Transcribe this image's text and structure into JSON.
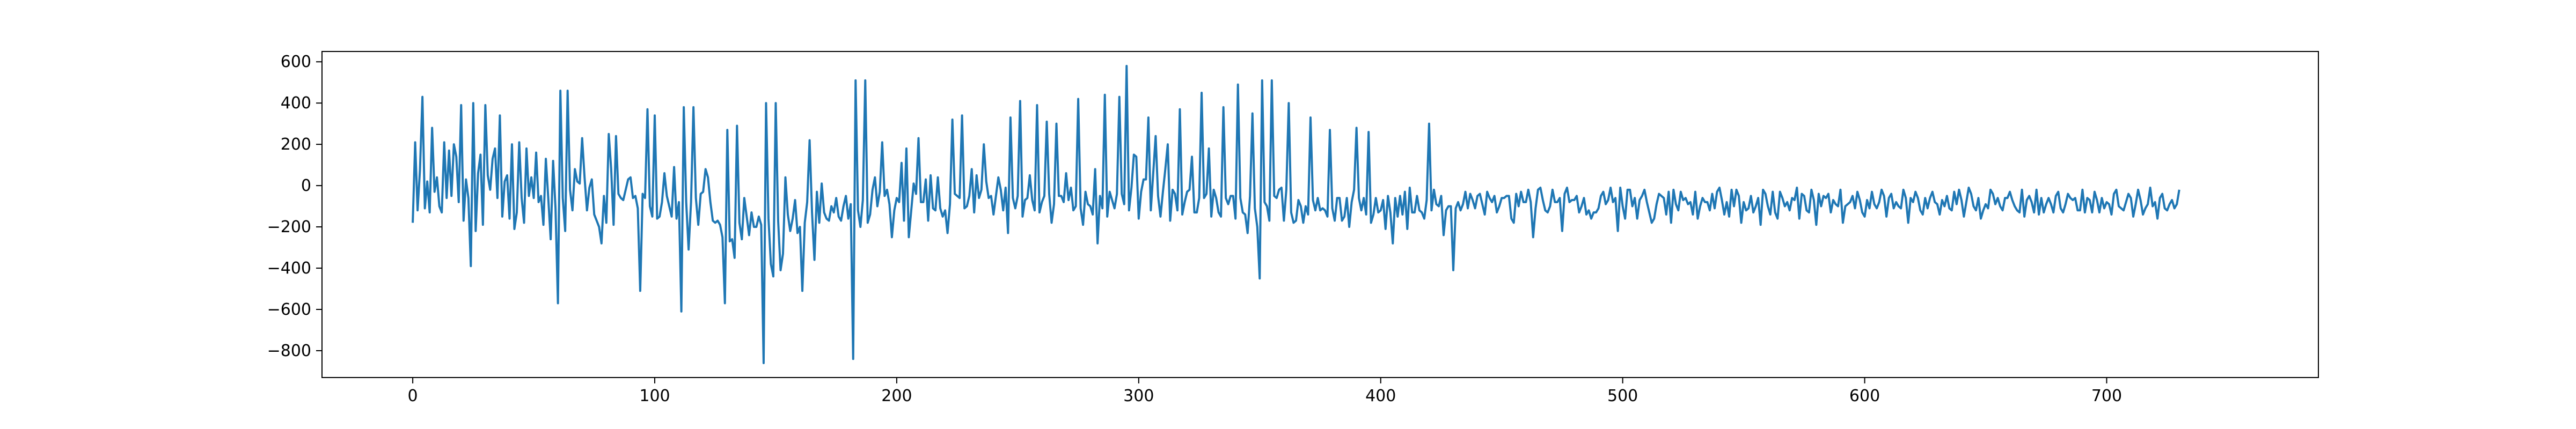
{
  "chart_data": {
    "type": "line",
    "title": "",
    "xlabel": "",
    "ylabel": "",
    "xlim": [
      -37.5,
      787.5
    ],
    "ylim": [
      -930,
      650
    ],
    "xticks": [
      0,
      100,
      200,
      300,
      400,
      500,
      600,
      700
    ],
    "yticks": [
      -800,
      -600,
      -400,
      -200,
      0,
      200,
      400,
      600
    ],
    "grid": false,
    "legend": "none",
    "series": [
      {
        "color": "#1f77b4",
        "x_start": 0,
        "x_step": 1,
        "values": [
          -180,
          210,
          -120,
          80,
          430,
          -110,
          20,
          -130,
          280,
          -30,
          40,
          -100,
          -130,
          210,
          -60,
          170,
          -50,
          200,
          140,
          -80,
          390,
          -170,
          30,
          -60,
          -390,
          400,
          -220,
          60,
          150,
          -190,
          390,
          50,
          -20,
          130,
          180,
          -60,
          340,
          -150,
          20,
          50,
          -160,
          200,
          -210,
          -130,
          210,
          -60,
          -180,
          180,
          -50,
          40,
          -60,
          160,
          -80,
          -50,
          -190,
          130,
          -60,
          -260,
          120,
          -110,
          -570,
          460,
          -60,
          -220,
          460,
          -20,
          -120,
          80,
          20,
          10,
          230,
          40,
          -120,
          -10,
          30,
          -140,
          -170,
          -200,
          -280,
          -50,
          -180,
          250,
          80,
          -190,
          240,
          -40,
          -60,
          -70,
          -20,
          30,
          40,
          -60,
          -50,
          -110,
          -510,
          -40,
          -60,
          370,
          -100,
          -150,
          340,
          -160,
          -150,
          -80,
          60,
          -50,
          -100,
          -150,
          90,
          -160,
          -80,
          -610,
          380,
          -80,
          -310,
          -80,
          380,
          -60,
          -190,
          -40,
          -30,
          80,
          40,
          -80,
          -170,
          -180,
          -170,
          -190,
          -250,
          -570,
          270,
          -270,
          -260,
          -350,
          290,
          -180,
          -260,
          -60,
          -150,
          -240,
          -130,
          -200,
          -200,
          -150,
          -190,
          -860,
          400,
          -160,
          -380,
          -440,
          400,
          -170,
          -410,
          -330,
          40,
          -140,
          -220,
          -160,
          -70,
          -230,
          -200,
          -510,
          -180,
          -80,
          220,
          -130,
          -360,
          -30,
          -180,
          10,
          -130,
          -160,
          -170,
          -100,
          -130,
          -60,
          -150,
          -170,
          -100,
          -50,
          -160,
          -90,
          -840,
          510,
          -120,
          -200,
          -70,
          510,
          -180,
          -140,
          -20,
          40,
          -100,
          -30,
          210,
          -50,
          -20,
          -90,
          -250,
          -120,
          -60,
          -80,
          110,
          -170,
          180,
          -250,
          -120,
          10,
          -40,
          230,
          -80,
          -80,
          30,
          -170,
          50,
          -110,
          -120,
          40,
          -110,
          -150,
          -120,
          -230,
          -90,
          320,
          -40,
          -50,
          -60,
          340,
          -110,
          -100,
          -50,
          80,
          -130,
          50,
          -60,
          -20,
          200,
          20,
          -60,
          -50,
          -140,
          -50,
          40,
          -20,
          -120,
          -10,
          -230,
          330,
          -60,
          -110,
          -50,
          410,
          -150,
          -70,
          -60,
          50,
          -70,
          -120,
          390,
          -130,
          -80,
          -50,
          310,
          -40,
          -180,
          -90,
          300,
          -50,
          -50,
          -80,
          60,
          -70,
          -10,
          -120,
          -100,
          420,
          -110,
          -190,
          -30,
          -90,
          -100,
          -140,
          80,
          -280,
          -50,
          -110,
          440,
          -150,
          -30,
          -70,
          -110,
          -40,
          430,
          -40,
          -90,
          580,
          -120,
          -10,
          150,
          140,
          -160,
          -30,
          30,
          30,
          330,
          -120,
          60,
          240,
          -50,
          -150,
          -30,
          80,
          200,
          -170,
          -20,
          -40,
          -120,
          370,
          -140,
          -80,
          -30,
          -20,
          140,
          -130,
          -130,
          -60,
          450,
          -60,
          -40,
          180,
          -150,
          -20,
          -60,
          -130,
          -150,
          380,
          -60,
          -90,
          -50,
          -50,
          -160,
          490,
          -60,
          -130,
          -140,
          -230,
          -50,
          350,
          -110,
          -200,
          -450,
          510,
          -80,
          -100,
          -170,
          510,
          -50,
          -60,
          -20,
          -10,
          -170,
          -20,
          400,
          -130,
          -180,
          -170,
          -70,
          -100,
          -180,
          -100,
          -140,
          330,
          -70,
          -120,
          -60,
          -120,
          -110,
          -120,
          -150,
          270,
          -110,
          -170,
          -60,
          -60,
          -170,
          -150,
          -60,
          -200,
          -80,
          -20,
          280,
          -60,
          -120,
          -60,
          -140,
          260,
          -180,
          -140,
          -60,
          -130,
          -120,
          -70,
          -210,
          -50,
          -130,
          -280,
          -60,
          -150,
          -50,
          -140,
          -30,
          -210,
          -10,
          -130,
          -130,
          -50,
          -120,
          -130,
          -160,
          -70,
          300,
          -120,
          -20,
          -90,
          -100,
          -50,
          -240,
          -120,
          -100,
          -100,
          -410,
          -110,
          -80,
          -120,
          -90,
          -30,
          -110,
          -40,
          -70,
          -110,
          -50,
          -40,
          -90,
          -140,
          -30,
          -60,
          -80,
          -50,
          -130,
          -100,
          -60,
          -60,
          -50,
          -50,
          -160,
          -180,
          -40,
          -100,
          -30,
          -80,
          -80,
          -20,
          -80,
          -250,
          -110,
          -20,
          -10,
          -70,
          -120,
          -130,
          -100,
          -20,
          -80,
          -80,
          -60,
          -220,
          -40,
          -10,
          -80,
          -70,
          -70,
          -50,
          -130,
          -100,
          -60,
          -140,
          -120,
          -160,
          -130,
          -130,
          -110,
          -50,
          -30,
          -90,
          -70,
          -10,
          -80,
          -60,
          -220,
          -10,
          -100,
          -160,
          -20,
          -20,
          -100,
          -60,
          -160,
          -70,
          -50,
          -20,
          -80,
          -130,
          -180,
          -160,
          -90,
          -40,
          -50,
          -60,
          -140,
          -30,
          -180,
          -20,
          -90,
          -120,
          -30,
          -70,
          -60,
          -90,
          -80,
          -140,
          -30,
          -160,
          -100,
          -60,
          -80,
          -80,
          -120,
          -40,
          -110,
          -30,
          -10,
          -70,
          -140,
          -80,
          -150,
          -20,
          -100,
          -20,
          -50,
          -180,
          -80,
          -120,
          -110,
          -50,
          -130,
          -100,
          -60,
          -190,
          -20,
          -40,
          -100,
          -140,
          -30,
          -130,
          -160,
          -30,
          -60,
          -100,
          -80,
          -120,
          -60,
          -70,
          -10,
          -160,
          -40,
          -50,
          -120,
          -130,
          -20,
          -70,
          -190,
          -40,
          -100,
          -50,
          -60,
          -40,
          -130,
          -70,
          -90,
          -100,
          -20,
          -180,
          -100,
          -90,
          -80,
          -50,
          -110,
          -30,
          -70,
          -130,
          -150,
          -70,
          -110,
          -30,
          -90,
          -110,
          -80,
          -20,
          -50,
          -150,
          -60,
          -40,
          -110,
          -80,
          -100,
          -110,
          -20,
          -60,
          -180,
          -60,
          -80,
          -30,
          -60,
          -120,
          -140,
          -60,
          -110,
          -60,
          -30,
          -80,
          -90,
          -140,
          -70,
          -100,
          -50,
          -110,
          -120,
          -30,
          -90,
          -20,
          -70,
          -150,
          -80,
          -10,
          -40,
          -100,
          -120,
          -60,
          -160,
          -120,
          -90,
          -110,
          -20,
          -40,
          -90,
          -60,
          -100,
          -120,
          -60,
          -60,
          -30,
          -70,
          -100,
          -120,
          -130,
          -20,
          -150,
          -70,
          -50,
          -80,
          -130,
          -20,
          -140,
          -60,
          -130,
          -90,
          -60,
          -90,
          -130,
          -50,
          -30,
          -110,
          -130,
          -90,
          -40,
          -60,
          -70,
          -60,
          -120,
          -120,
          -20,
          -130,
          -60,
          -70,
          -130,
          -30,
          -70,
          -130,
          -60,
          -110,
          -80,
          -90,
          -140,
          -40,
          -20,
          -100,
          -110,
          -120,
          -80,
          -40,
          -60,
          -150,
          -90,
          -20,
          -70,
          -140,
          -110,
          -90,
          -10,
          -100,
          -80,
          -160,
          -60,
          -40,
          -110,
          -120,
          -90,
          -70,
          -110,
          -90,
          -20
        ]
      }
    ]
  }
}
